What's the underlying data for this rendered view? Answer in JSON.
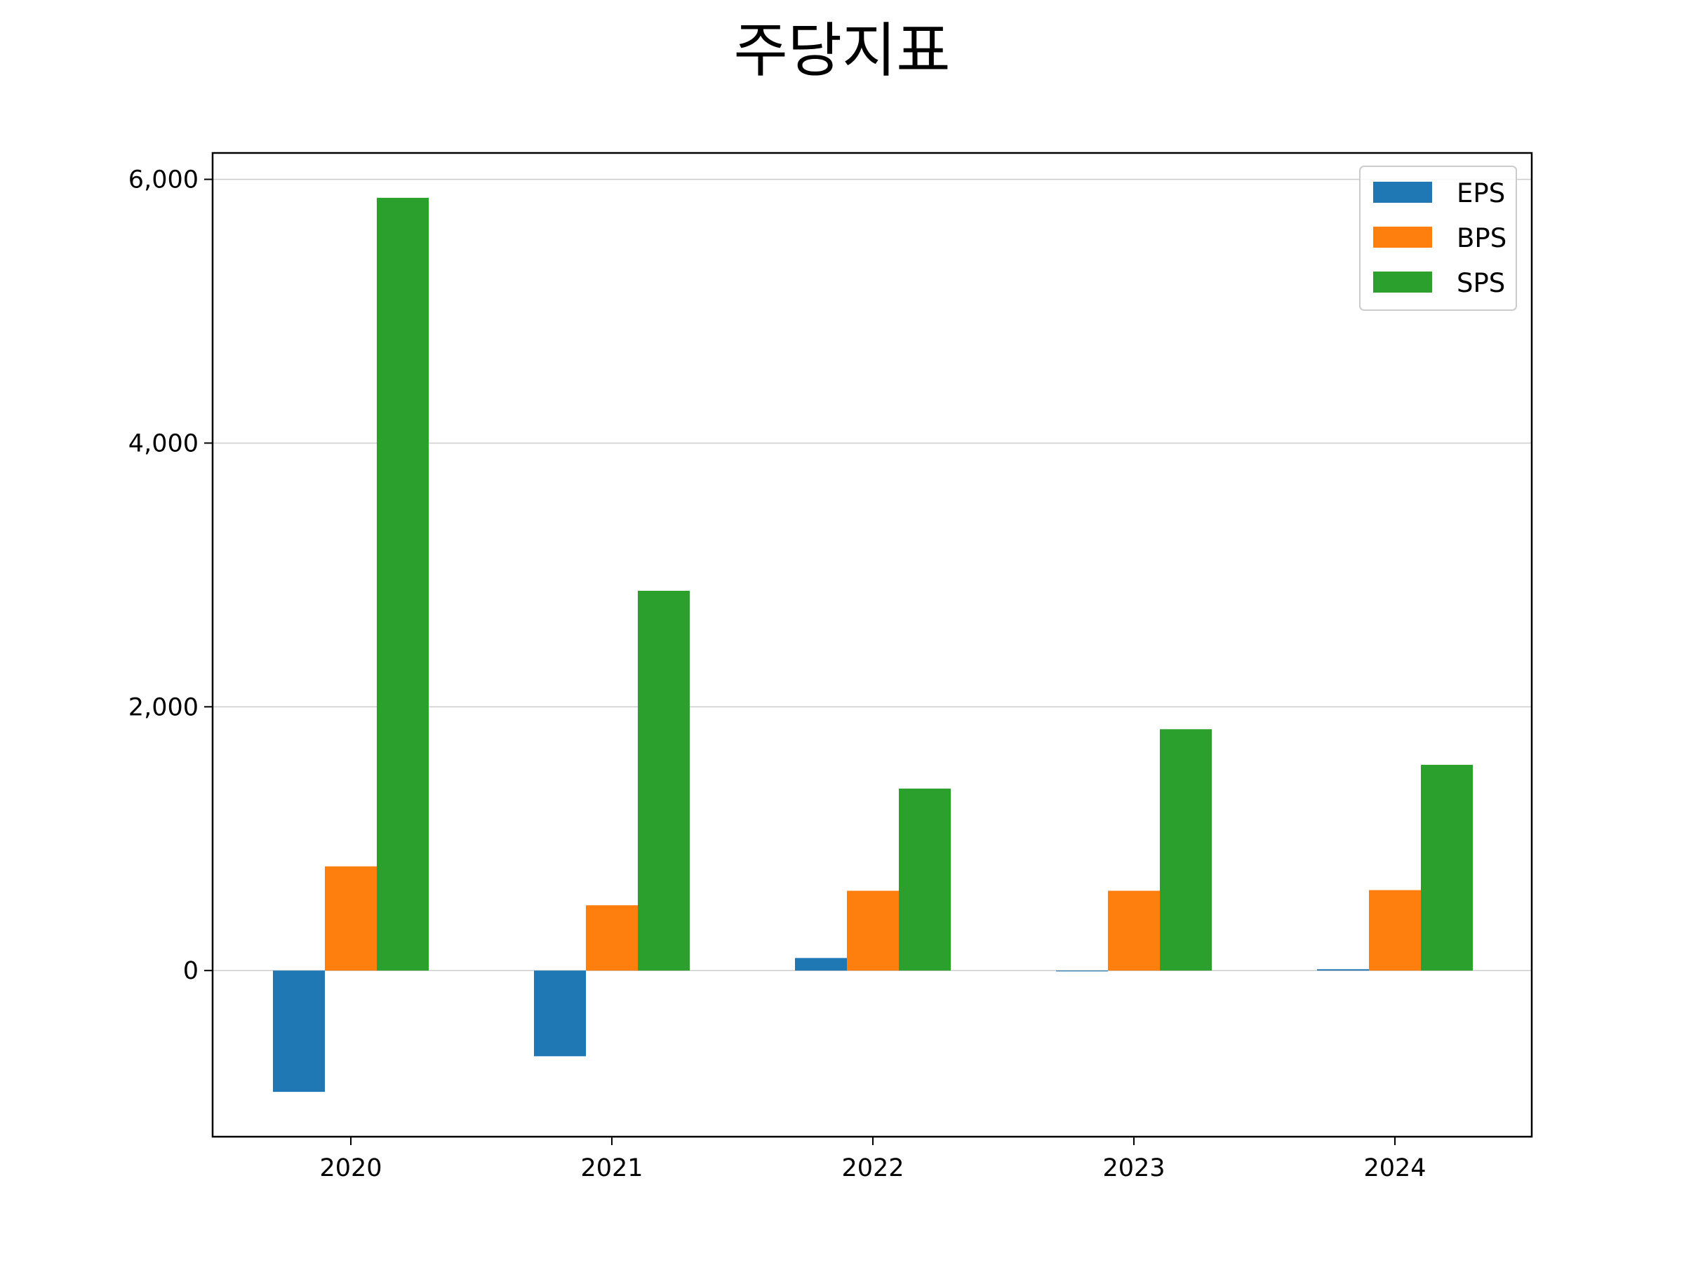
{
  "chart_data": {
    "type": "bar",
    "title": "주당지표",
    "xlabel": "",
    "ylabel": "",
    "categories": [
      "2020",
      "2021",
      "2022",
      "2023",
      "2024"
    ],
    "series": [
      {
        "name": "EPS",
        "color": "#1f77b4",
        "values": [
          -920,
          -650,
          95,
          0,
          10
        ]
      },
      {
        "name": "BPS",
        "color": "#ff7f0e",
        "values": [
          790,
          495,
          605,
          605,
          610
        ]
      },
      {
        "name": "SPS",
        "color": "#2ca02c",
        "values": [
          5860,
          2880,
          1380,
          1830,
          1560
        ]
      }
    ],
    "ylim": [
      -1260,
      6200
    ],
    "yticks": [
      0,
      2000,
      4000,
      6000
    ],
    "ytick_labels": [
      "0",
      "2,000",
      "4,000",
      "6,000"
    ],
    "grid": "horizontal",
    "legend_position": "top-right"
  }
}
